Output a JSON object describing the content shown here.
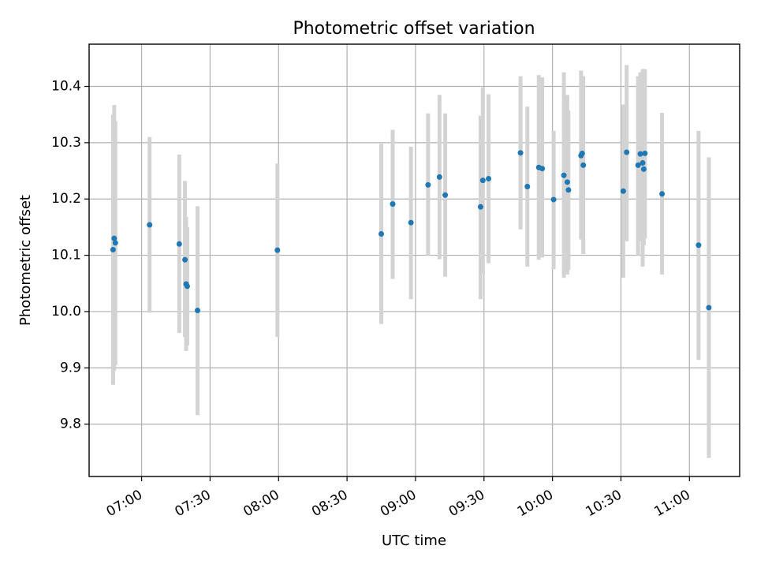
{
  "chart_data": {
    "type": "scatter",
    "title": "Photometric offset variation",
    "xlabel": "UTC time",
    "ylabel": "Photometric offset",
    "xlim": [
      "06:37",
      "11:22"
    ],
    "ylim": [
      9.707,
      10.475
    ],
    "grid": true,
    "colors": {
      "points": "#1f77b4",
      "errorbars": "#d3d3d3"
    },
    "x_ticks": [
      "07:00",
      "07:30",
      "08:00",
      "08:30",
      "09:00",
      "09:30",
      "10:00",
      "10:30",
      "11:00"
    ],
    "y_ticks": [
      9.8,
      9.9,
      10.0,
      10.1,
      10.2,
      10.3,
      10.4
    ],
    "y_tick_labels": [
      "9.8",
      "9.9",
      "10.0",
      "10.1",
      "10.2",
      "10.3",
      "10.4"
    ],
    "points": [
      {
        "time": "06:47:30",
        "y": 10.11,
        "ylow": 9.87,
        "yhigh": 10.35
      },
      {
        "time": "06:48:00",
        "y": 10.13,
        "ylow": 9.895,
        "yhigh": 10.367
      },
      {
        "time": "06:48:30",
        "y": 10.122,
        "ylow": 9.905,
        "yhigh": 10.338
      },
      {
        "time": "07:03:30",
        "y": 10.154,
        "ylow": 9.998,
        "yhigh": 10.31
      },
      {
        "time": "07:16:30",
        "y": 10.12,
        "ylow": 9.962,
        "yhigh": 10.279
      },
      {
        "time": "07:19:00",
        "y": 10.092,
        "ylow": 9.955,
        "yhigh": 10.232
      },
      {
        "time": "07:19:30",
        "y": 10.049,
        "ylow": 9.93,
        "yhigh": 10.168
      },
      {
        "time": "07:20:00",
        "y": 10.045,
        "ylow": 9.94,
        "yhigh": 10.15
      },
      {
        "time": "07:24:30",
        "y": 10.002,
        "ylow": 9.816,
        "yhigh": 10.187
      },
      {
        "time": "07:59:30",
        "y": 10.109,
        "ylow": 9.955,
        "yhigh": 10.263
      },
      {
        "time": "08:45:00",
        "y": 10.138,
        "ylow": 9.978,
        "yhigh": 10.298
      },
      {
        "time": "08:50:00",
        "y": 10.191,
        "ylow": 10.058,
        "yhigh": 10.323
      },
      {
        "time": "08:58:00",
        "y": 10.158,
        "ylow": 10.022,
        "yhigh": 10.293
      },
      {
        "time": "09:05:30",
        "y": 10.225,
        "ylow": 10.1,
        "yhigh": 10.352
      },
      {
        "time": "09:10:30",
        "y": 10.239,
        "ylow": 10.093,
        "yhigh": 10.385
      },
      {
        "time": "09:13:00",
        "y": 10.207,
        "ylow": 10.062,
        "yhigh": 10.352
      },
      {
        "time": "09:28:30",
        "y": 10.186,
        "ylow": 10.022,
        "yhigh": 10.348
      },
      {
        "time": "09:29:30",
        "y": 10.233,
        "ylow": 10.068,
        "yhigh": 10.398
      },
      {
        "time": "09:32:00",
        "y": 10.236,
        "ylow": 10.086,
        "yhigh": 10.386
      },
      {
        "time": "09:46:00",
        "y": 10.282,
        "ylow": 10.146,
        "yhigh": 10.418
      },
      {
        "time": "09:49:00",
        "y": 10.222,
        "ylow": 10.08,
        "yhigh": 10.364
      },
      {
        "time": "09:54:00",
        "y": 10.256,
        "ylow": 10.092,
        "yhigh": 10.42
      },
      {
        "time": "09:55:30",
        "y": 10.254,
        "ylow": 10.096,
        "yhigh": 10.416
      },
      {
        "time": "10:00:30",
        "y": 10.199,
        "ylow": 10.075,
        "yhigh": 10.321
      },
      {
        "time": "10:05:00",
        "y": 10.242,
        "ylow": 10.06,
        "yhigh": 10.425
      },
      {
        "time": "10:06:30",
        "y": 10.23,
        "ylow": 10.066,
        "yhigh": 10.385
      },
      {
        "time": "10:07:00",
        "y": 10.216,
        "ylow": 10.074,
        "yhigh": 10.357
      },
      {
        "time": "10:12:30",
        "y": 10.277,
        "ylow": 10.128,
        "yhigh": 10.428
      },
      {
        "time": "10:13:00",
        "y": 10.281,
        "ylow": 10.15,
        "yhigh": 10.412
      },
      {
        "time": "10:13:30",
        "y": 10.26,
        "ylow": 10.102,
        "yhigh": 10.418
      },
      {
        "time": "10:31:00",
        "y": 10.214,
        "ylow": 10.06,
        "yhigh": 10.368
      },
      {
        "time": "10:32:30",
        "y": 10.283,
        "ylow": 10.125,
        "yhigh": 10.438
      },
      {
        "time": "10:37:30",
        "y": 10.26,
        "ylow": 10.1,
        "yhigh": 10.418
      },
      {
        "time": "10:38:30",
        "y": 10.28,
        "ylow": 10.125,
        "yhigh": 10.425
      },
      {
        "time": "10:39:30",
        "y": 10.264,
        "ylow": 10.08,
        "yhigh": 10.43
      },
      {
        "time": "10:40:00",
        "y": 10.253,
        "ylow": 10.118,
        "yhigh": 10.431
      },
      {
        "time": "10:40:30",
        "y": 10.281,
        "ylow": 10.13,
        "yhigh": 10.43
      },
      {
        "time": "10:48:00",
        "y": 10.209,
        "ylow": 10.066,
        "yhigh": 10.353
      },
      {
        "time": "11:04:00",
        "y": 10.118,
        "ylow": 9.914,
        "yhigh": 10.321
      },
      {
        "time": "11:08:30",
        "y": 10.007,
        "ylow": 9.74,
        "yhigh": 10.274
      }
    ]
  }
}
